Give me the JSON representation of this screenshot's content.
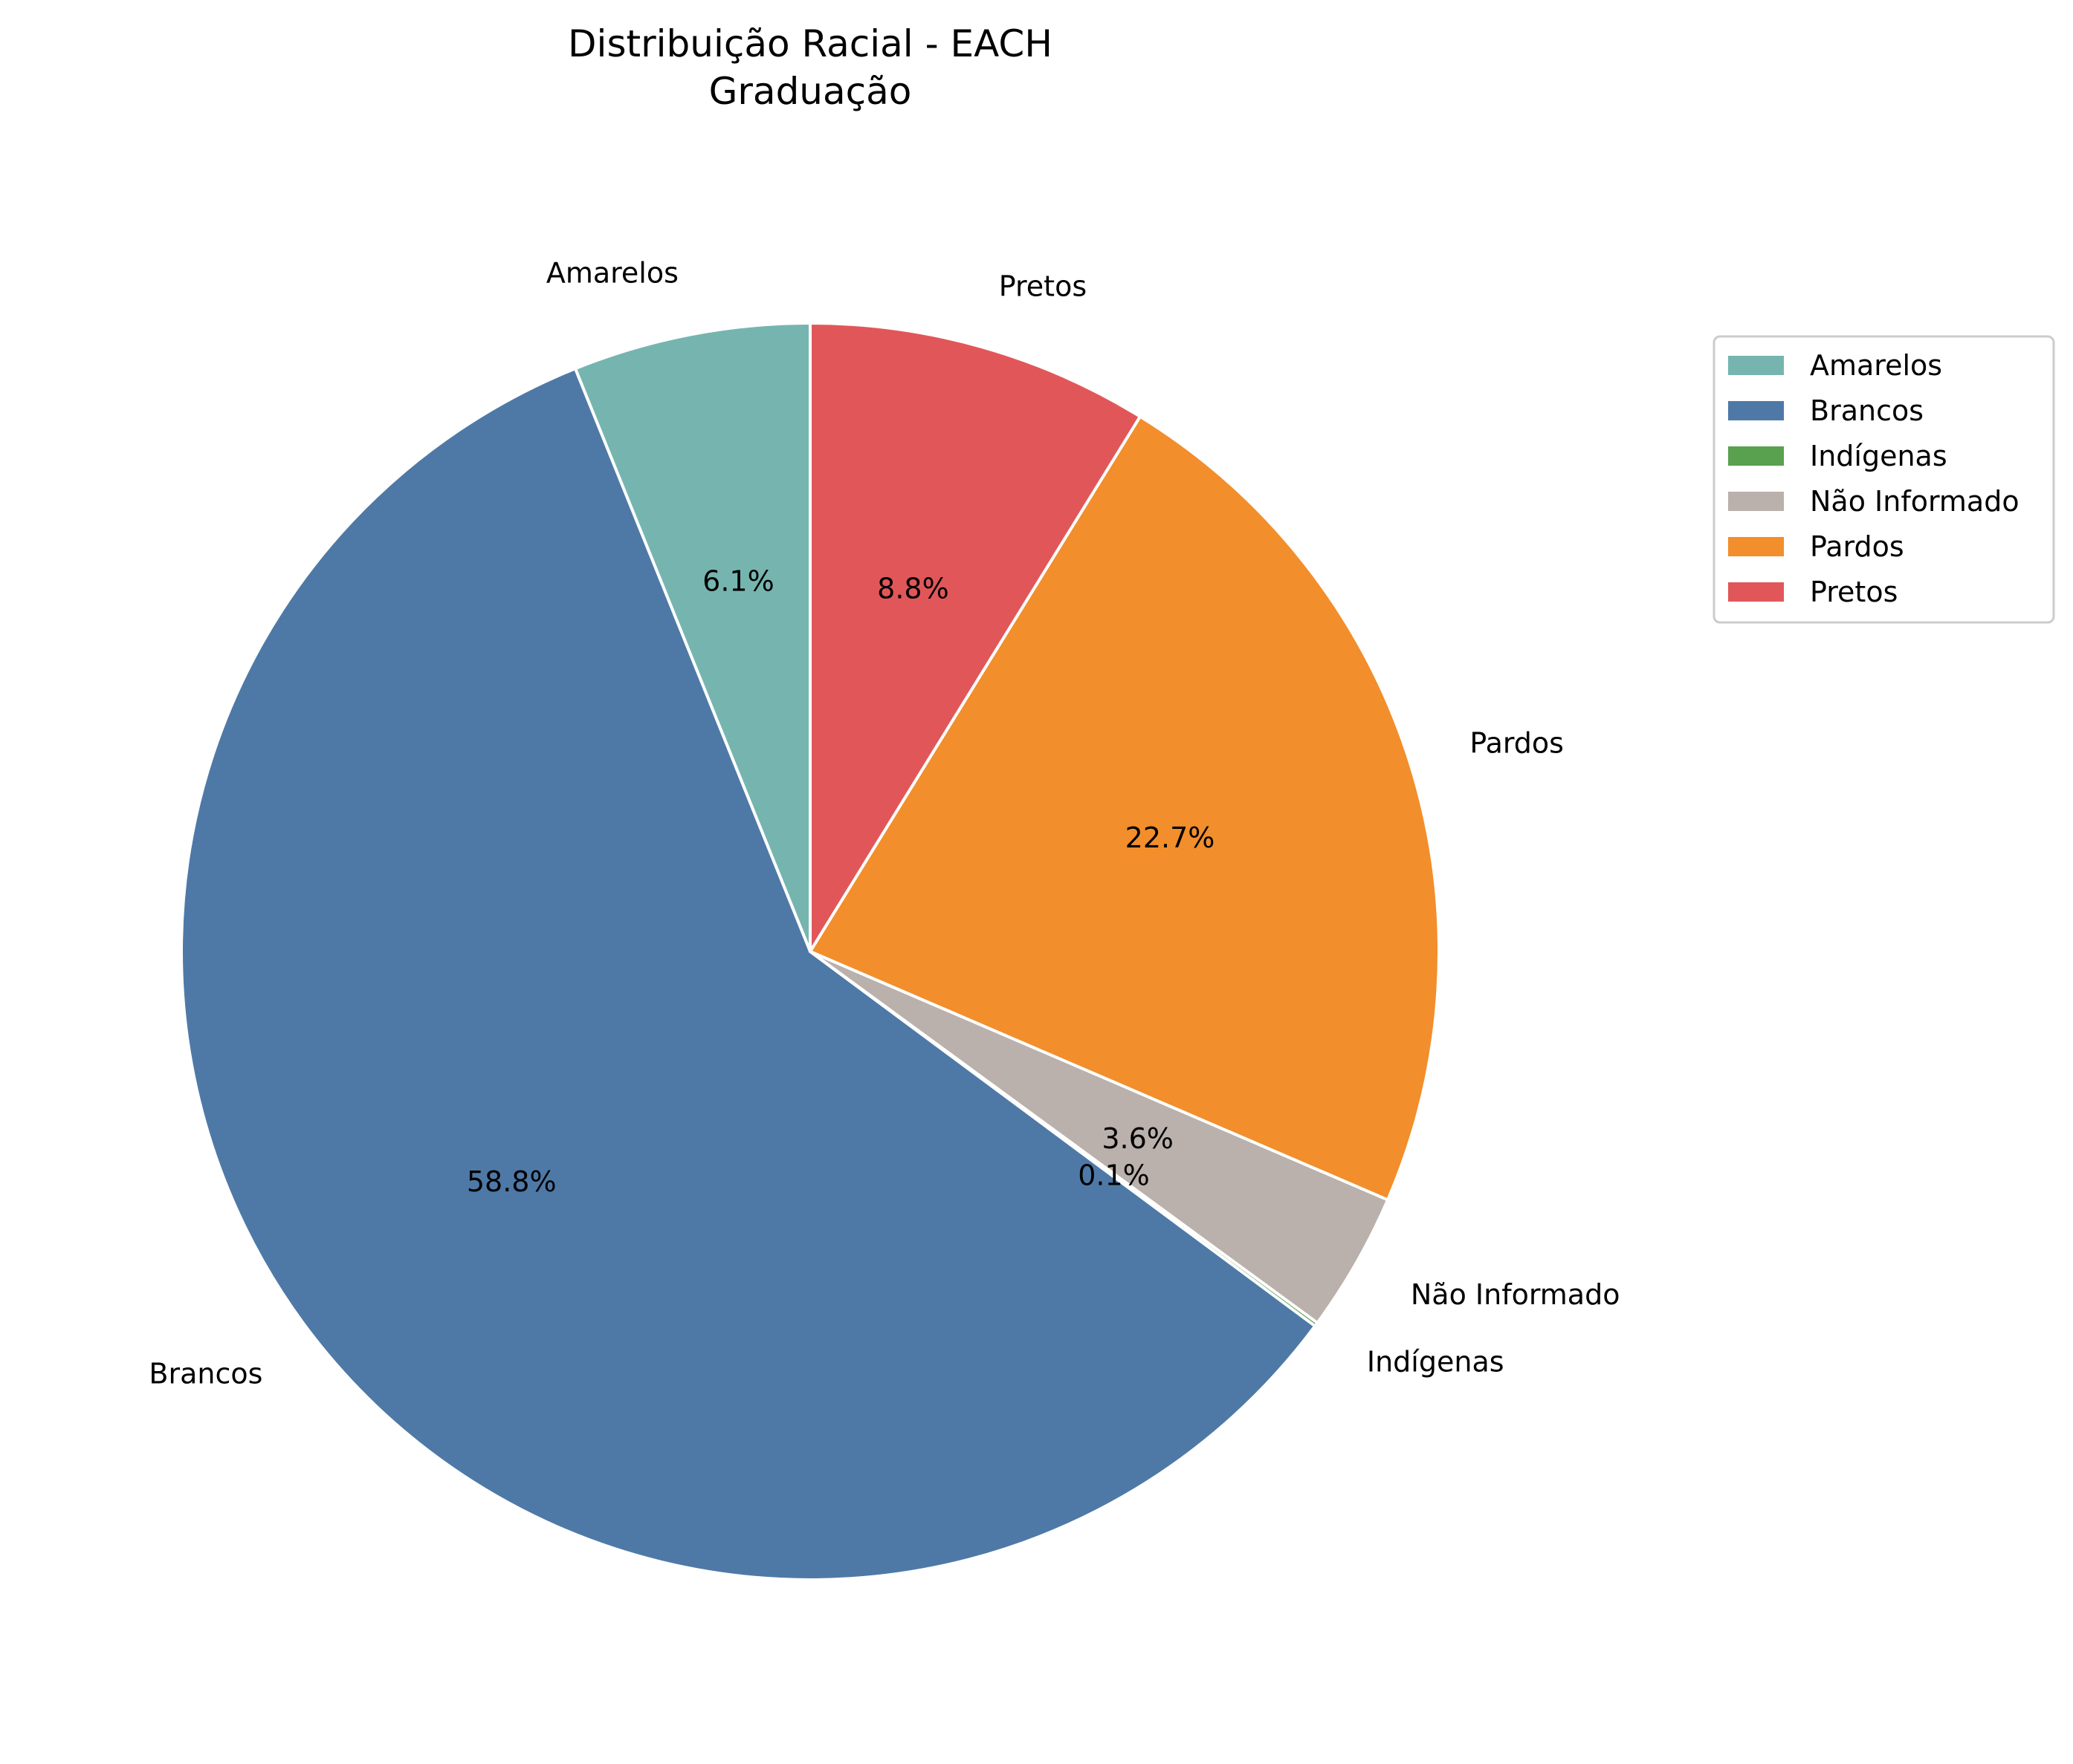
{
  "chart_data": {
    "type": "pie",
    "title": "Distribuição Racial - EACH",
    "subtitle": "Graduação",
    "start_angle_deg": 90,
    "direction": "counterclockwise",
    "legend_position": "top-right",
    "slices": [
      {
        "label": "Amarelos",
        "value": 6.1,
        "pct_label": "6.1%",
        "color": "#76b5af"
      },
      {
        "label": "Brancos",
        "value": 58.8,
        "pct_label": "58.8%",
        "color": "#4e79a7"
      },
      {
        "label": "Indígenas",
        "value": 0.1,
        "pct_label": "0.1%",
        "color": "#59a14f"
      },
      {
        "label": "Não Informado",
        "value": 3.6,
        "pct_label": "3.6%",
        "color": "#bab0ac"
      },
      {
        "label": "Pardos",
        "value": 22.7,
        "pct_label": "22.7%",
        "color": "#f28e2b"
      },
      {
        "label": "Pretos",
        "value": 8.8,
        "pct_label": "8.8%",
        "color": "#e15759"
      }
    ]
  }
}
